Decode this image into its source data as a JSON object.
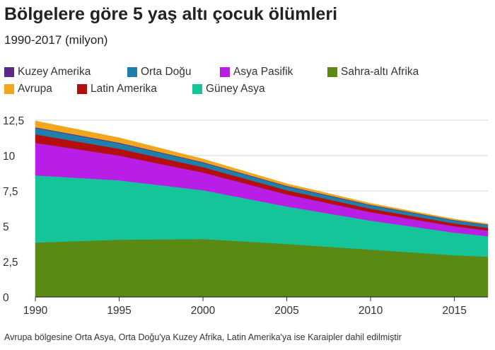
{
  "title": "Bölgelere göre 5 yaş altı çocuk ölümleri",
  "subtitle": "1990-2017 (milyon)",
  "footnote": "Avrupa bölgesine Orta Asya, Orta Doğu'ya Kuzey Afrika, Latin Amerika'ya ise Karaipler dahil edilmiştir",
  "legend": [
    {
      "name": "Kuzey Amerika",
      "color": "#5b2a86"
    },
    {
      "name": "Orta Doğu",
      "color": "#1f7fa8"
    },
    {
      "name": "Asya Pasifik",
      "color": "#b91ee6"
    },
    {
      "name": "Sahra-altı Afrika",
      "color": "#5a8a14"
    },
    {
      "name": "Avrupa",
      "color": "#f0a71e"
    },
    {
      "name": "Latin Amerika",
      "color": "#b40f0f"
    },
    {
      "name": "Güney Asya",
      "color": "#16c49a"
    }
  ],
  "chart_data": {
    "type": "area",
    "stacked": true,
    "x": [
      1990,
      1995,
      2000,
      2005,
      2010,
      2015,
      2017
    ],
    "xticks": [
      "1990",
      "1995",
      "2000",
      "2005",
      "2010",
      "2015"
    ],
    "yticks": [
      "0",
      "2,5",
      "5",
      "7,5",
      "10",
      "12,5"
    ],
    "ylim": [
      0,
      12.5
    ],
    "xlim": [
      1990,
      2017
    ],
    "grid": true,
    "legend_position": "top",
    "series": [
      {
        "name": "Sahra-altı Afrika",
        "color": "#5a8a14",
        "values": [
          3.85,
          4.05,
          4.1,
          3.75,
          3.35,
          2.95,
          2.85
        ]
      },
      {
        "name": "Güney Asya",
        "color": "#16c49a",
        "values": [
          4.75,
          4.2,
          3.45,
          2.65,
          2.05,
          1.6,
          1.45
        ]
      },
      {
        "name": "Asya Pasifik",
        "color": "#b91ee6",
        "values": [
          2.3,
          1.75,
          1.25,
          0.85,
          0.6,
          0.45,
          0.4
        ]
      },
      {
        "name": "Latin Amerika",
        "color": "#b40f0f",
        "values": [
          0.6,
          0.48,
          0.38,
          0.3,
          0.24,
          0.2,
          0.19
        ]
      },
      {
        "name": "Orta Doğu",
        "color": "#1f7fa8",
        "values": [
          0.45,
          0.38,
          0.32,
          0.27,
          0.24,
          0.21,
          0.2
        ]
      },
      {
        "name": "Kuzey Amerika",
        "color": "#5b2a86",
        "values": [
          0.05,
          0.05,
          0.04,
          0.04,
          0.04,
          0.03,
          0.03
        ]
      },
      {
        "name": "Avrupa",
        "color": "#f0a71e",
        "values": [
          0.45,
          0.35,
          0.22,
          0.15,
          0.1,
          0.07,
          0.06
        ]
      }
    ]
  }
}
